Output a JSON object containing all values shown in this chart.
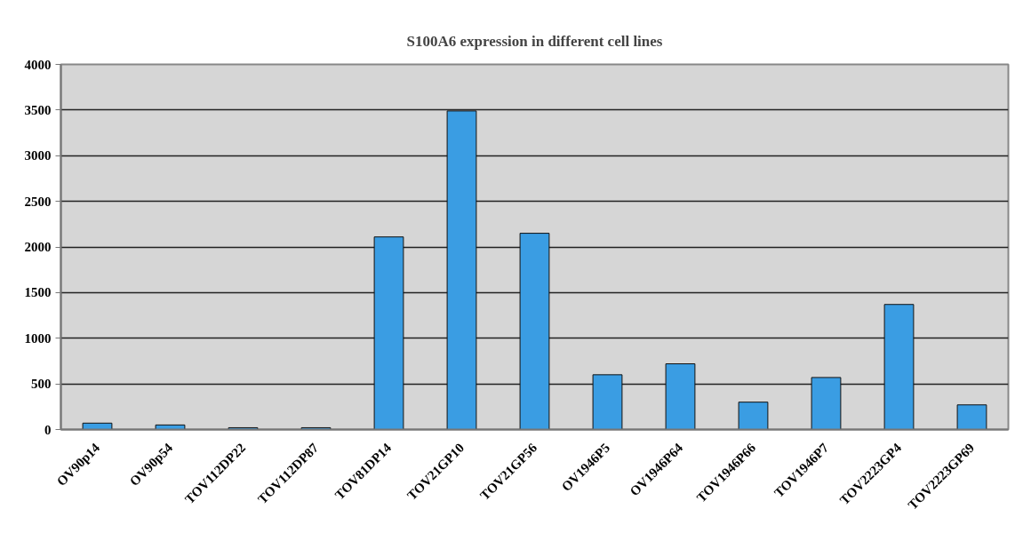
{
  "chart_data": {
    "type": "bar",
    "title": "S100A6 expression in different cell lines",
    "categories": [
      "OV90p14",
      "OV90p54",
      "TOV112DP22",
      "TOV112DP87",
      "TOV81DP14",
      "TOV21GP10",
      "TOV21GP56",
      "OV1946P5",
      "OV1946P64",
      "TOV1946P66",
      "TOV1946P7",
      "TOV2223GP4",
      "TOV2223GP69"
    ],
    "values": [
      70,
      50,
      20,
      20,
      2110,
      3490,
      2150,
      600,
      720,
      300,
      570,
      1370,
      270
    ],
    "color": "#3a9de3",
    "ylim": [
      0,
      4000
    ],
    "yticks": [
      0,
      500,
      1000,
      1500,
      2000,
      2500,
      3000,
      3500,
      4000
    ],
    "grid": "y"
  }
}
